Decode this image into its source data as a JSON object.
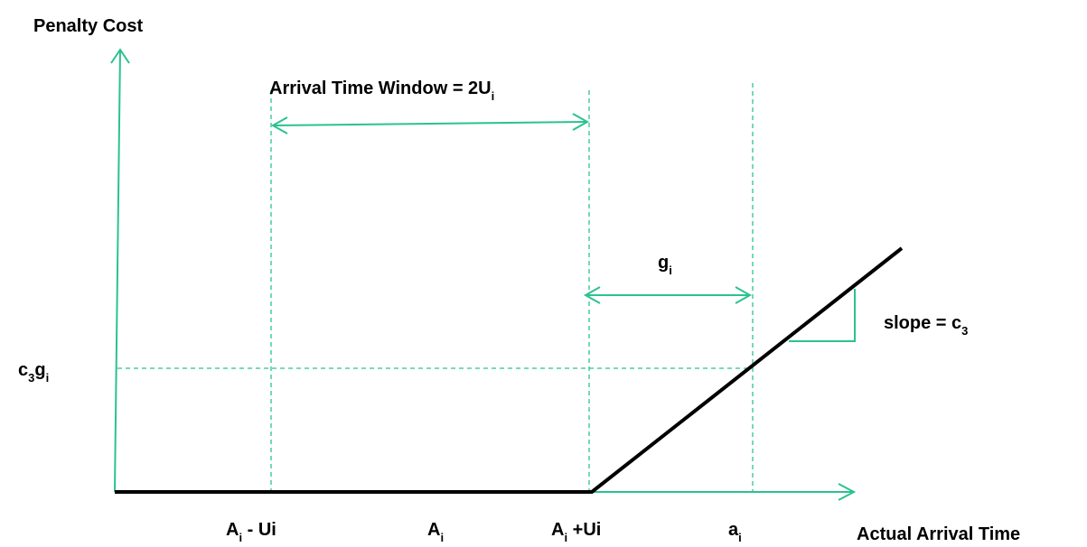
{
  "axes": {
    "y_label": "Penalty Cost",
    "x_label": "Actual Arrival Time"
  },
  "annotations": {
    "window": {
      "text": "Arrival Time Window = 2U",
      "sub": "i"
    },
    "gap": {
      "text": "g",
      "sub": "i"
    },
    "slope": {
      "text": "slope = c",
      "sub": "3"
    },
    "cost": {
      "text1": "c",
      "sub1": "3",
      "text2": "g",
      "sub2": "i"
    }
  },
  "x_labels": [
    {
      "text": "A",
      "sub": "i",
      "rest": " - Ui"
    },
    {
      "text": "A",
      "sub": "i"
    },
    {
      "text": "A",
      "sub": "i",
      "rest": " +Ui"
    },
    {
      "text": "a",
      "sub": "i"
    }
  ]
}
